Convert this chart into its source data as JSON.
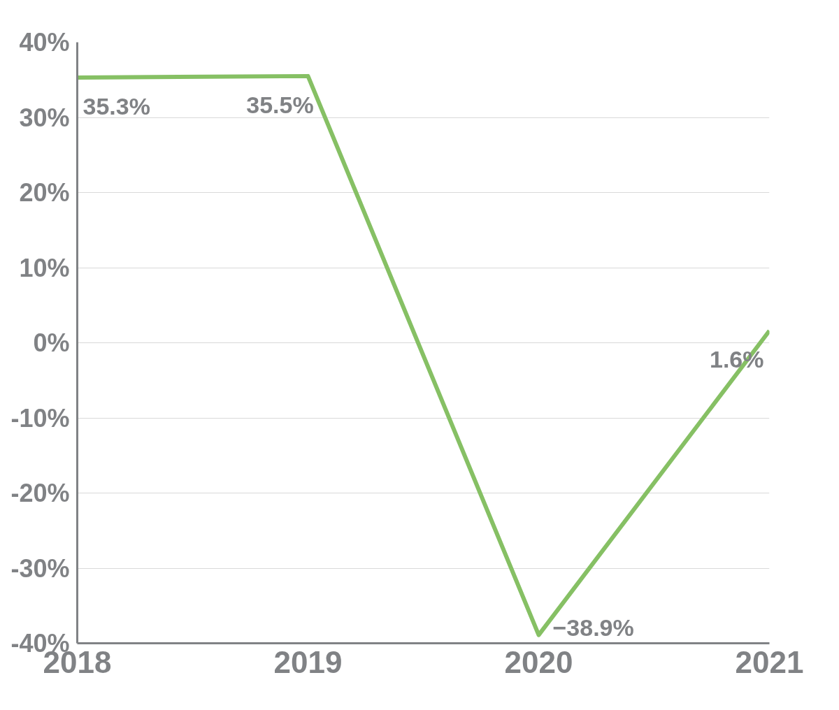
{
  "chart_data": {
    "type": "line",
    "categories": [
      "2018",
      "2019",
      "2020",
      "2021"
    ],
    "series": [
      {
        "color": "#86c064",
        "values": [
          35.3,
          35.5,
          -38.9,
          1.6
        ],
        "value_labels": [
          "35.3%",
          "35.5%",
          "−38.9%",
          "1.6%"
        ]
      }
    ],
    "ylim": [
      -40,
      40
    ],
    "yticks": [
      {
        "value": -40,
        "label": "-40%"
      },
      {
        "value": -30,
        "label": "-30%"
      },
      {
        "value": -20,
        "label": "-20%"
      },
      {
        "value": -10,
        "label": "-10%"
      },
      {
        "value": 0,
        "label": "0%"
      },
      {
        "value": 10,
        "label": "10%"
      },
      {
        "value": 20,
        "label": "20%"
      },
      {
        "value": 30,
        "label": "30%"
      },
      {
        "value": 40,
        "label": "40%"
      }
    ],
    "grid": "y",
    "marker": "none",
    "line_style": "solid"
  }
}
